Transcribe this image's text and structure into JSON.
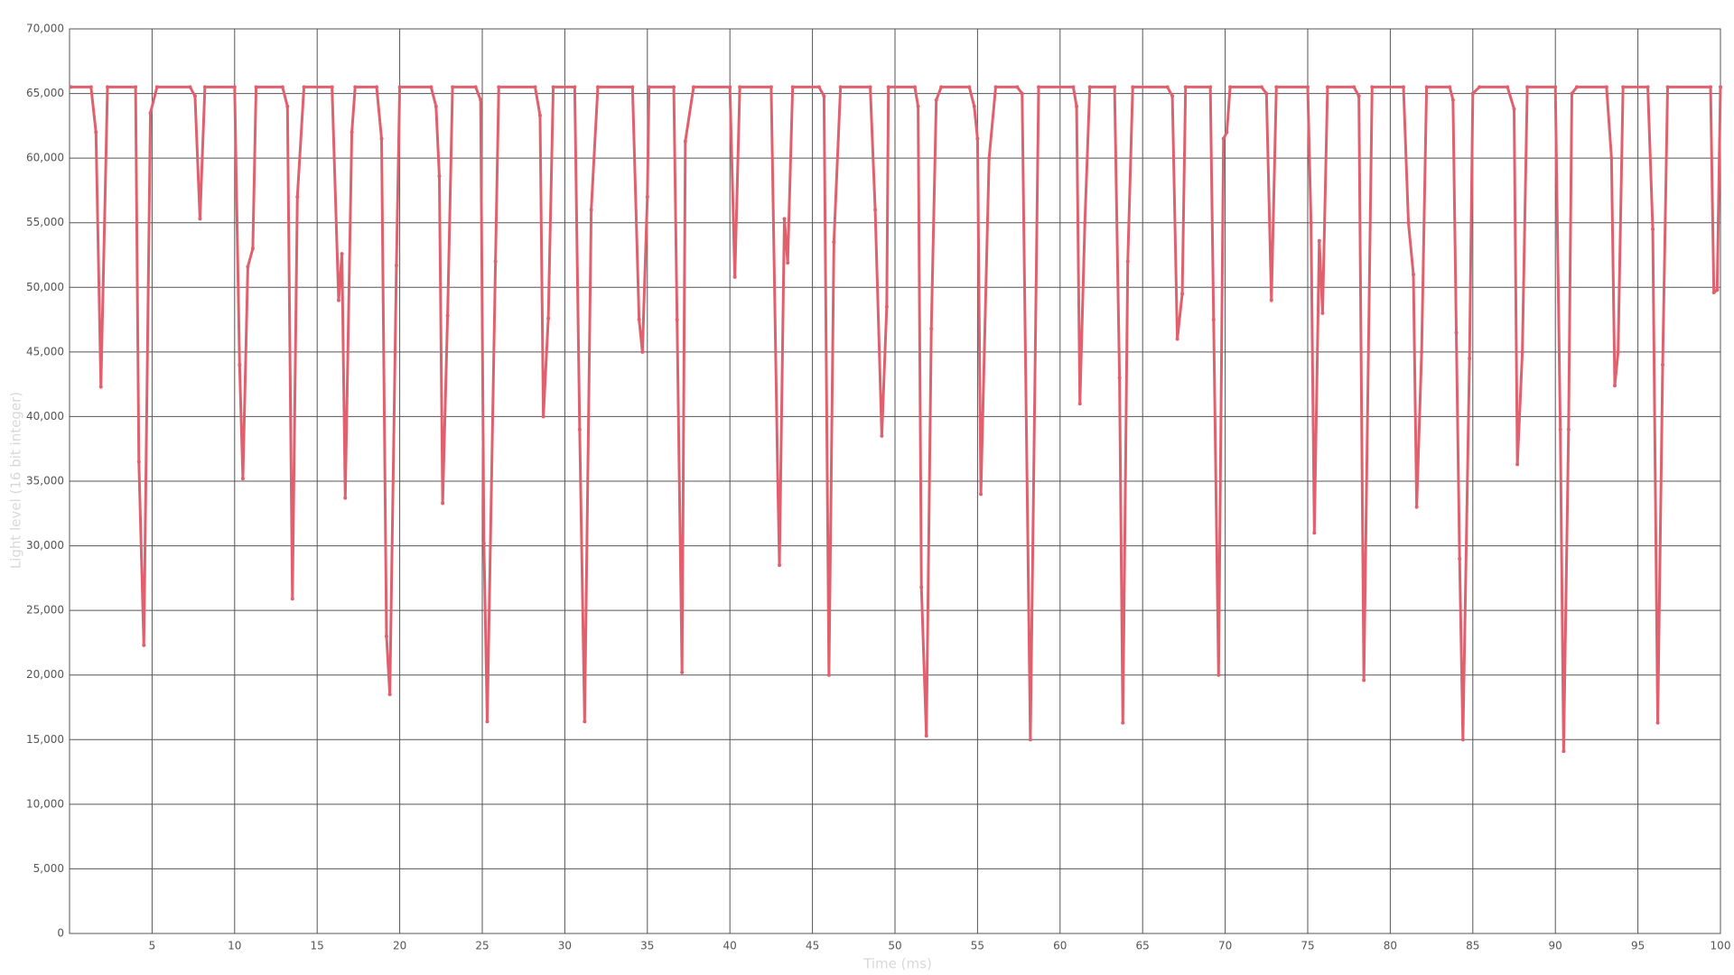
{
  "chart_data": {
    "type": "line",
    "x_label": "Time (ms)",
    "y_label": "Light level (16 bit integer)",
    "color": "#e0606e",
    "grid": true,
    "xlim": [
      0,
      100
    ],
    "xticks": [
      5,
      10,
      15,
      20,
      25,
      30,
      35,
      40,
      45,
      50,
      55,
      60,
      65,
      70,
      75,
      80,
      85,
      90,
      95,
      100
    ],
    "ylim": [
      0,
      70000
    ],
    "yticks": [
      0,
      {
        "value": 5000,
        "label": "5,000"
      },
      {
        "value": 10000,
        "label": "10,000"
      },
      {
        "value": 15000,
        "label": "15,000"
      },
      {
        "value": 20000,
        "label": "20,000"
      },
      {
        "value": 25000,
        "label": "25,000"
      },
      {
        "value": 30000,
        "label": "30,000"
      },
      {
        "value": 35000,
        "label": "35,000"
      },
      {
        "value": 40000,
        "label": "40,000"
      },
      {
        "value": 45000,
        "label": "45,000"
      },
      {
        "value": 50000,
        "label": "50,000"
      },
      {
        "value": 55000,
        "label": "55,000"
      },
      {
        "value": 60000,
        "label": "60,000"
      },
      {
        "value": 65000,
        "label": "65,000"
      },
      {
        "value": 70000,
        "label": "70,000"
      }
    ],
    "x": [
      0.1,
      1.3,
      1.6,
      1.9,
      2.3,
      4,
      4.2,
      4.5,
      4.9,
      5.3,
      7.3,
      7.6,
      7.9,
      8.2,
      10,
      10.3,
      10.5,
      10.8,
      11.1,
      11.3,
      12.9,
      13.2,
      13.5,
      13.8,
      14.2,
      15.9,
      16.3,
      16.5,
      16.7,
      17.1,
      17.3,
      18.6,
      18.9,
      19.2,
      19.4,
      19.8,
      20,
      21.9,
      22.2,
      22.4,
      22.6,
      22.9,
      23.2,
      24.6,
      24.9,
      25.1,
      25.3,
      25.8,
      26,
      28.2,
      28.5,
      28.7,
      29,
      29.3,
      30.6,
      30.9,
      31.2,
      31.6,
      32,
      34.1,
      34.5,
      34.7,
      35,
      35.1,
      36.6,
      36.8,
      37.1,
      37.3,
      37.8,
      40,
      40.3,
      40.6,
      42.5,
      42.9,
      43,
      43.3,
      43.5,
      43.8,
      45.4,
      45.7,
      46,
      46.3,
      46.7,
      48.5,
      48.8,
      49.2,
      49.5,
      49.6,
      51.2,
      51.4,
      51.6,
      51.9,
      52.2,
      52.5,
      52.8,
      54.5,
      54.8,
      55,
      55.2,
      55.7,
      56.1,
      57.4,
      57.7,
      58.2,
      58.7,
      60.8,
      61,
      61.2,
      61.5,
      61.8,
      63.3,
      63.6,
      63.8,
      64.1,
      64.4,
      66.5,
      66.8,
      67.1,
      67.4,
      67.6,
      69.1,
      69.3,
      69.6,
      69.9,
      70.1,
      70.3,
      72.2,
      72.5,
      72.8,
      73.1,
      75,
      75.2,
      75.4,
      75.7,
      75.9,
      76.2,
      77.8,
      78.1,
      78.4,
      78.9,
      80.8,
      81.1,
      81.4,
      81.6,
      81.9,
      82.2,
      83.6,
      83.8,
      84,
      84.2,
      84.4,
      84.8,
      85,
      85.4,
      87.1,
      87.5,
      87.7,
      88,
      88.3,
      90,
      90.3,
      90.5,
      90.8,
      91,
      91.3,
      93.1,
      93.4,
      93.6,
      93.8,
      94.1,
      95.6,
      95.9,
      96.2,
      96.5,
      96.8,
      99.4,
      99.6,
      99.8,
      100
    ],
    "values": [
      65500,
      65500,
      62000,
      42300,
      65500,
      65500,
      36500,
      22300,
      63500,
      65500,
      65500,
      64800,
      55300,
      65500,
      65500,
      44000,
      35200,
      51600,
      53000,
      65500,
      65500,
      64000,
      25900,
      57000,
      65500,
      65500,
      49000,
      52600,
      33700,
      62000,
      65500,
      65500,
      61500,
      23000,
      18500,
      51700,
      65500,
      65500,
      64000,
      58600,
      33300,
      47800,
      65500,
      65500,
      64500,
      30200,
      16400,
      52000,
      65500,
      65500,
      63300,
      40000,
      47600,
      65500,
      65500,
      39000,
      16400,
      56000,
      65500,
      65500,
      47500,
      45000,
      57000,
      65500,
      65500,
      47500,
      20200,
      61300,
      65500,
      65500,
      50800,
      65500,
      65500,
      35000,
      28500,
      55300,
      51900,
      65500,
      65500,
      64800,
      20000,
      53500,
      65500,
      65500,
      56000,
      38500,
      48500,
      65500,
      65500,
      64000,
      26800,
      15300,
      46800,
      64500,
      65500,
      65500,
      64000,
      61500,
      34000,
      60000,
      65500,
      65500,
      65000,
      15000,
      65500,
      65500,
      64000,
      41000,
      55000,
      65500,
      65500,
      43000,
      16300,
      52000,
      65500,
      65500,
      64800,
      46000,
      49500,
      65500,
      65500,
      47500,
      20000,
      61500,
      62000,
      65500,
      65500,
      65000,
      49000,
      65500,
      65500,
      55000,
      31000,
      53600,
      48000,
      65500,
      65500,
      64800,
      19600,
      65500,
      65500,
      55000,
      51000,
      33000,
      45000,
      65500,
      65500,
      64500,
      46500,
      29000,
      15000,
      44500,
      65000,
      65500,
      65500,
      63800,
      36300,
      45000,
      65500,
      65500,
      39000,
      14100,
      39000,
      65000,
      65500,
      65500,
      60000,
      42400,
      45000,
      65500,
      65500,
      54500,
      16300,
      44000,
      65500,
      65500,
      49600,
      49800,
      65500
    ]
  }
}
